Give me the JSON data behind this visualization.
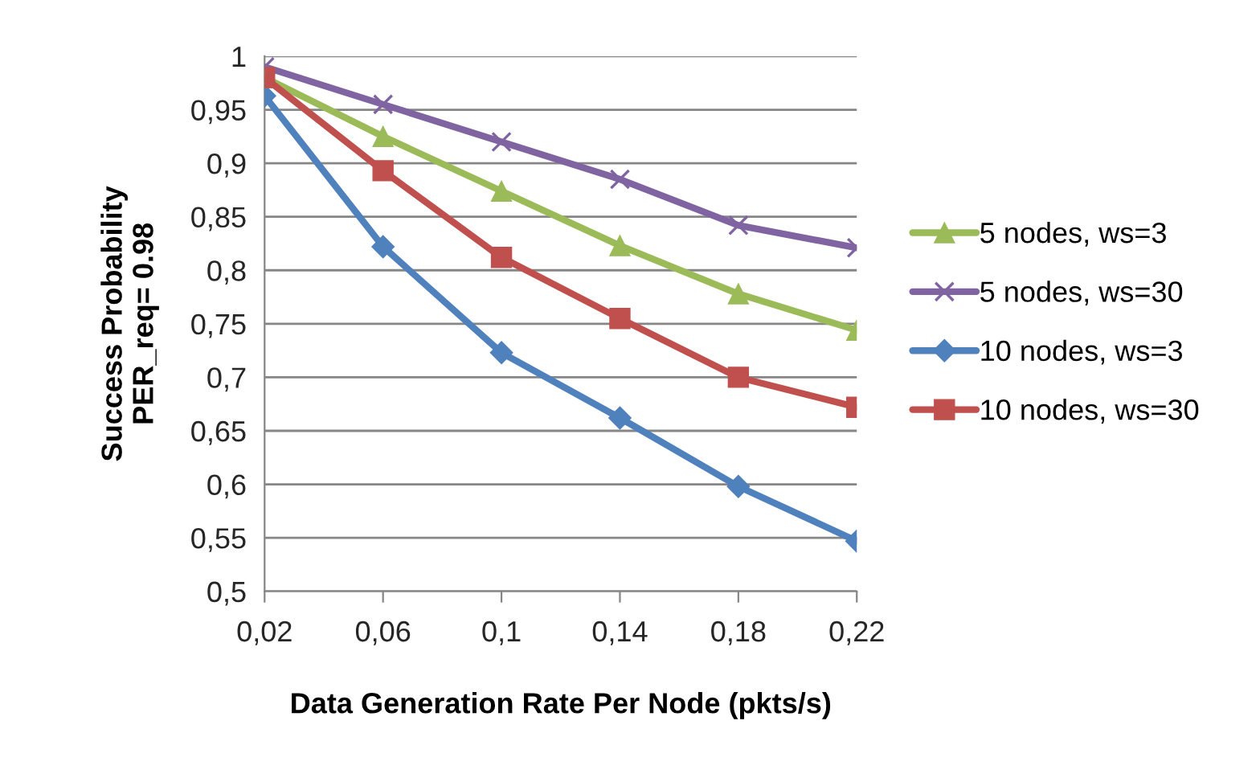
{
  "chart_data": {
    "type": "line",
    "xlabel": "Data Generation Rate Per Node (pkts/s)",
    "ylabel": "Success Probability\nPER_req= 0.98",
    "categories": [
      "0,02",
      "0,06",
      "0,1",
      "0,14",
      "0,18",
      "0,22"
    ],
    "series": [
      {
        "name": "5 nodes, ws=3",
        "color": "#9bbb59",
        "marker": "triangle",
        "values": [
          0.98,
          0.925,
          0.874,
          0.823,
          0.778,
          0.744
        ]
      },
      {
        "name": "5 nodes, ws=30",
        "color": "#8064a2",
        "marker": "cross",
        "values": [
          0.99,
          0.955,
          0.92,
          0.885,
          0.842,
          0.821
        ]
      },
      {
        "name": "10 nodes, ws=3",
        "color": "#4f81bd",
        "marker": "diamond",
        "values": [
          0.963,
          0.822,
          0.723,
          0.662,
          0.598,
          0.547
        ]
      },
      {
        "name": "10 nodes, ws=30",
        "color": "#c0504d",
        "marker": "square",
        "values": [
          0.98,
          0.893,
          0.812,
          0.755,
          0.7,
          0.672
        ]
      }
    ],
    "ylim": [
      0.5,
      1
    ],
    "yticks": [
      {
        "value": 0.5,
        "label": "0,5"
      },
      {
        "value": 0.55,
        "label": "0,55"
      },
      {
        "value": 0.6,
        "label": "0,6"
      },
      {
        "value": 0.65,
        "label": "0,65"
      },
      {
        "value": 0.7,
        "label": "0,7"
      },
      {
        "value": 0.75,
        "label": "0,75"
      },
      {
        "value": 0.8,
        "label": "0,8"
      },
      {
        "value": 0.85,
        "label": "0,85"
      },
      {
        "value": 0.9,
        "label": "0,9"
      },
      {
        "value": 0.95,
        "label": "0,95"
      },
      {
        "value": 1,
        "label": "1"
      }
    ],
    "grid": "y",
    "legend": "right",
    "line_style": "solid"
  }
}
